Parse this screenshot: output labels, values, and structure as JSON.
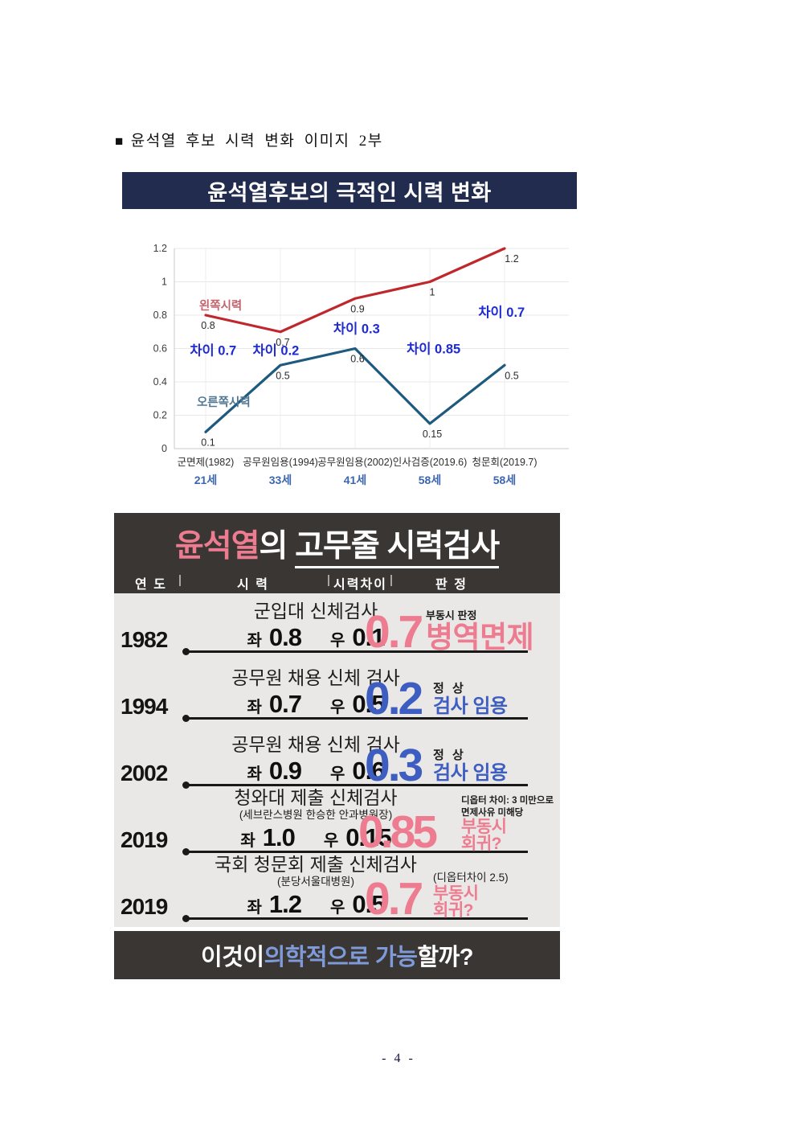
{
  "page": {
    "number": "- 4 -"
  },
  "heading": {
    "bullet": "■",
    "text": "윤석열 후보 시력 변화 이미지 2부"
  },
  "banner": {
    "title": "윤석열후보의 극적인 시력 변화",
    "bg": "#222c4e"
  },
  "chart_data": {
    "type": "line",
    "title": "윤석열후보의 극적인 시력 변화",
    "categories": [
      "군면제(1982)",
      "공무원임용(1994)",
      "공무원임용(2002)",
      "인사검증(2019.6)",
      "청문회(2019.7)"
    ],
    "ages": [
      "21세",
      "33세",
      "41세",
      "58세",
      "58세"
    ],
    "ylim": [
      0,
      1.2
    ],
    "yticks": [
      0,
      0.2,
      0.4,
      0.6,
      0.8,
      1,
      1.2
    ],
    "grid": true,
    "age_color": "#3c67ae",
    "annotation_color": "#1e2bd0",
    "series": [
      {
        "name": "왼쪽시력",
        "color": "#c0272d",
        "label_color": "#c4636c",
        "values": [
          0.8,
          0.7,
          0.9,
          1,
          1.2
        ],
        "point_labels": [
          "0.8",
          "0.7",
          "0.9",
          "1",
          "1.2"
        ],
        "name_pos": {
          "x": 0.2,
          "y": 0.858
        }
      },
      {
        "name": "오른쪽시력",
        "color": "#1e5a7d",
        "label_color": "#4f7795",
        "values": [
          0.1,
          0.5,
          0.6,
          0.15,
          0.5
        ],
        "point_labels": [
          "0.1",
          "0.5",
          "0.6",
          "0.15",
          "0.5"
        ],
        "name_pos": {
          "x": 0.24,
          "y": 0.28
        }
      }
    ],
    "annotations": [
      {
        "text": "차이 0.7",
        "x": 0.1,
        "y": 0.59
      },
      {
        "text": "차이 0.2",
        "x": 0.94,
        "y": 0.59
      },
      {
        "text": "차이 0.3",
        "x": 2.02,
        "y": 0.72
      },
      {
        "text": "차이 0.85",
        "x": 3.05,
        "y": 0.6
      },
      {
        "text": "차이 0.7",
        "x": 3.96,
        "y": 0.82
      }
    ]
  },
  "infographic": {
    "title": {
      "highlight": "윤석열",
      "mid": "의 ",
      "underlined": "고무줄 시력검사"
    },
    "columns": [
      "연 도",
      "시 력",
      "시력차이",
      "판 정"
    ],
    "eye_labels": {
      "left": "좌",
      "right": "우"
    },
    "colors": {
      "pink": "#ee7c90",
      "blue": "#3d5ec0",
      "header_bg": "#3a3633",
      "body_bg": "#e9e8e6"
    },
    "rows": [
      {
        "year": "1982",
        "name": "군입대 신체검사",
        "sub": "",
        "eye_left": "0.8",
        "eye_right": "0.1",
        "diff": "0.7",
        "verdict_small": "부동시 판정",
        "verdict_main": "병역면제"
      },
      {
        "year": "1994",
        "name": "공무원 채용 신체 검사",
        "sub": "",
        "eye_left": "0.7",
        "eye_right": "0.5",
        "diff": "0.2",
        "verdict_small": "정 상",
        "verdict_main": "검사 임용"
      },
      {
        "year": "2002",
        "name": "공무원 채용 신체 검사",
        "sub": "",
        "eye_left": "0.9",
        "eye_right": "0.6",
        "diff": "0.3",
        "verdict_small": "정 상",
        "verdict_main": "검사 임용"
      },
      {
        "year": "2019",
        "name": "청와대 제출 신체검사",
        "sub": "(세브란스병원 한승한 안과병원장)",
        "eye_left": "1.0",
        "eye_right": "0.15",
        "diff": "0.85",
        "verdict_small": "디옵터 차이: 3 미만으로\n면제사유 미해당",
        "verdict_main": "부동시\n회귀?"
      },
      {
        "year": "2019",
        "name": "국회 청문회 제출 신체검사",
        "sub": "(분당서울대병원)",
        "eye_left": "1.2",
        "eye_right": "0.5",
        "diff": "0.7",
        "verdict_small": "(디옵터차이 2.5)",
        "verdict_main": "부동시\n회귀?"
      }
    ],
    "footer": {
      "pre": "이것이 ",
      "highlight": "의학적으로 가능",
      "post": "할까?"
    }
  }
}
